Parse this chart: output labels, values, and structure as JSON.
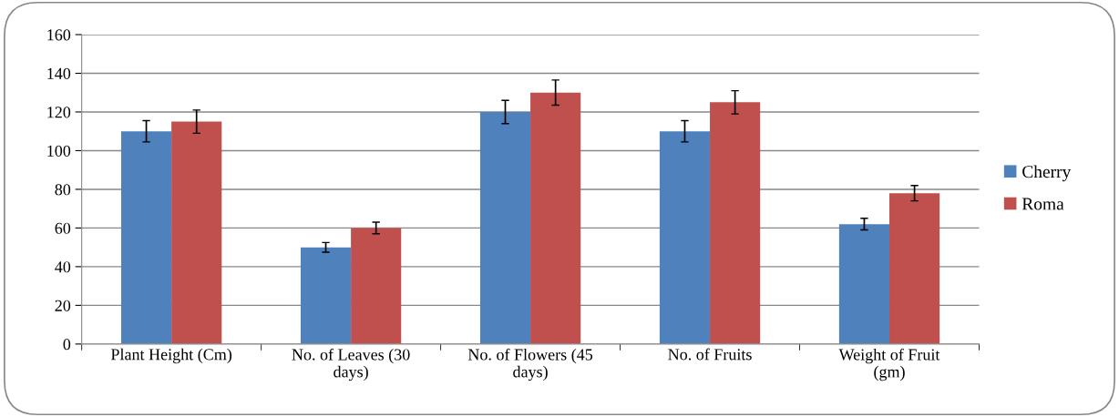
{
  "chart_data": {
    "type": "bar",
    "categories": [
      "Plant Height (Cm)",
      "No. of Leaves (30 days)",
      "No. of Flowers (45 days)",
      "No. of Fruits",
      "Weight of Fruit (gm)"
    ],
    "series": [
      {
        "name": "Cherry",
        "color": "#4f81bd",
        "values": [
          110,
          50,
          120,
          110,
          62
        ],
        "errors": [
          5.5,
          2.5,
          6,
          5.5,
          3
        ]
      },
      {
        "name": "Roma",
        "color": "#c0504d",
        "values": [
          115,
          60,
          130,
          125,
          78
        ],
        "errors": [
          6,
          3,
          6.5,
          6,
          4
        ]
      }
    ],
    "ylim": [
      0,
      160
    ],
    "yticks": [
      0,
      20,
      40,
      60,
      80,
      100,
      120,
      140,
      160
    ],
    "grid": "y",
    "legend": "right"
  }
}
